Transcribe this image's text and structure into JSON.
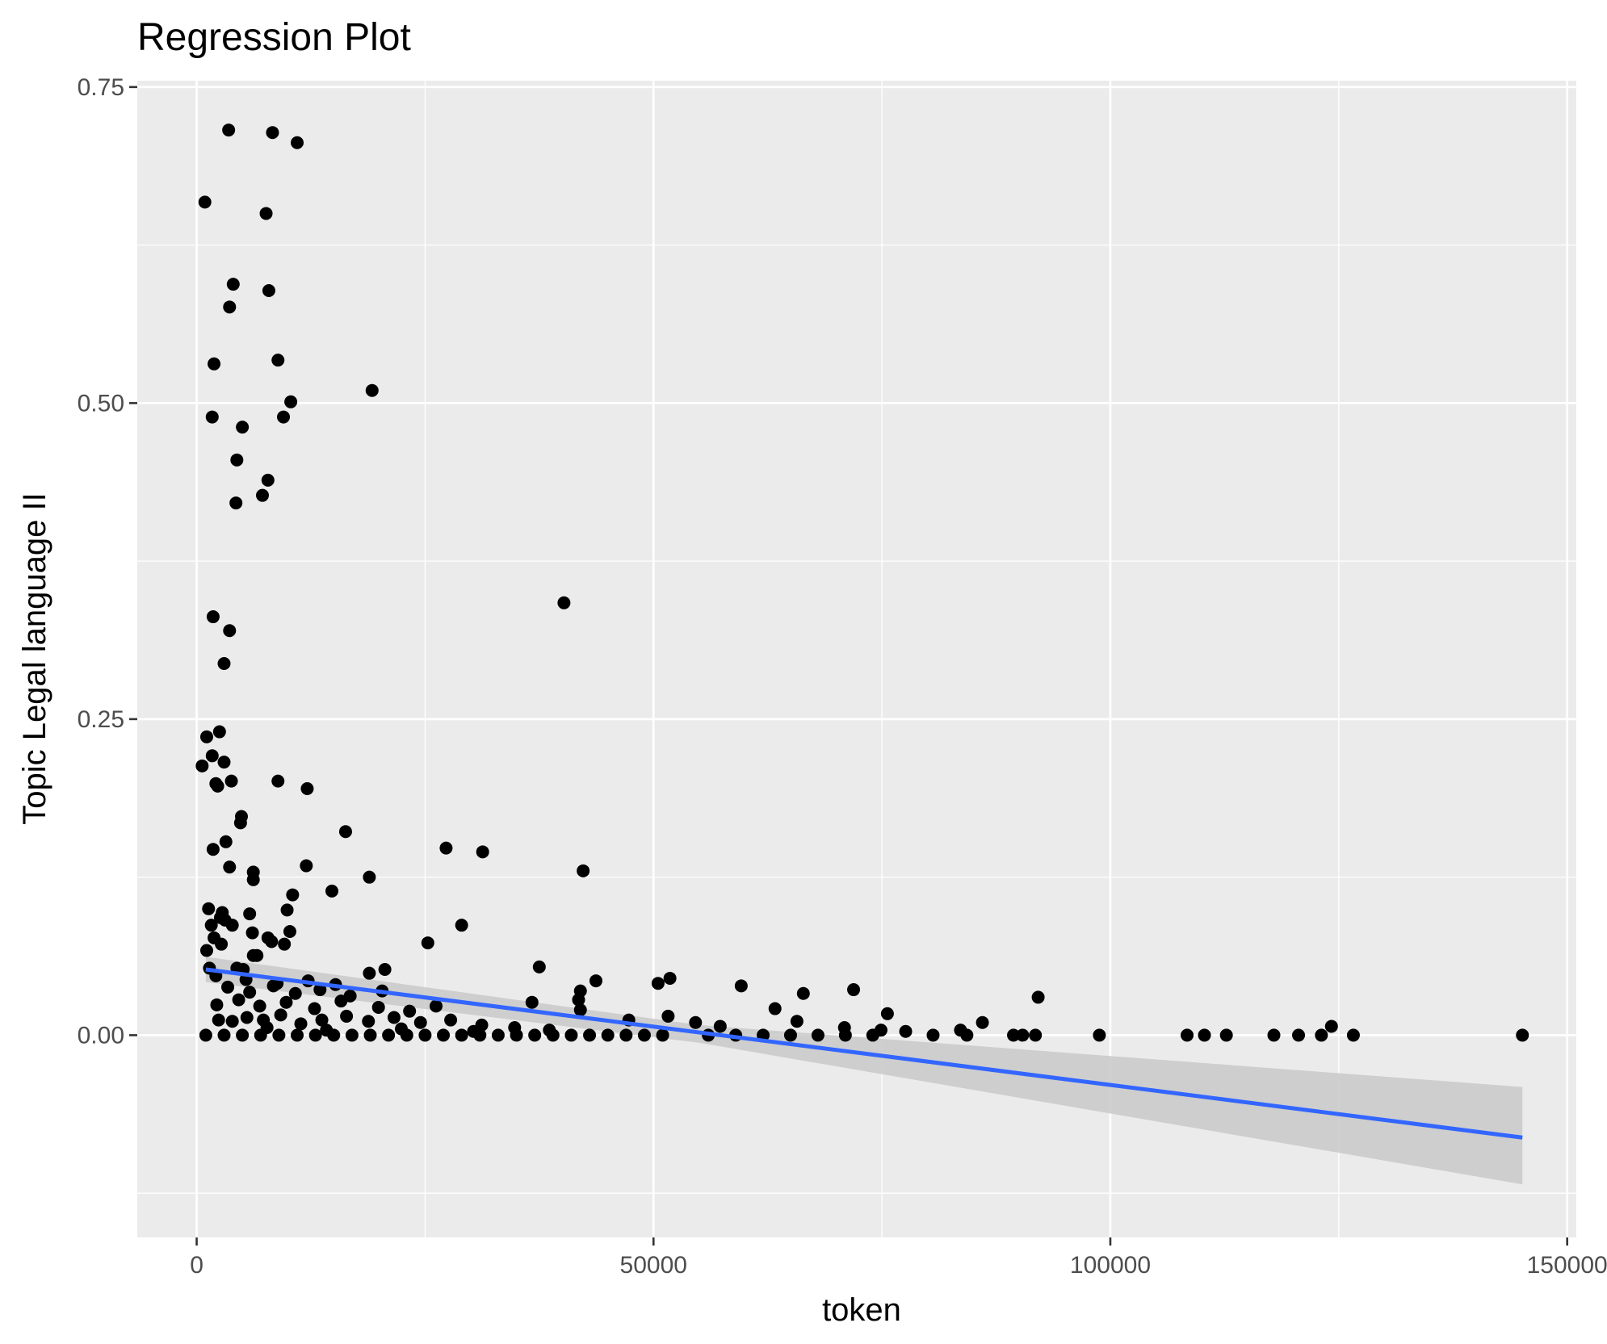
{
  "chart_data": {
    "type": "scatter",
    "title": "Regression Plot",
    "xlabel": "token",
    "ylabel": "Topic Legal language II",
    "xlim": [
      -6500,
      151000
    ],
    "ylim": [
      -0.16,
      0.755
    ],
    "xticks": [
      0,
      50000,
      100000,
      150000
    ],
    "xtick_labels": [
      "0",
      "50000",
      "100000",
      "150000"
    ],
    "yticks": [
      0.0,
      0.25,
      0.5,
      0.75
    ],
    "ytick_labels": [
      "0.00",
      "0.25",
      "0.50",
      "0.75"
    ],
    "grid": true,
    "legend": "none",
    "colors": {
      "panel": "#EBEBEB",
      "grid": "#FFFFFF",
      "points": "#000000",
      "regression_line": "#3366FF",
      "confidence_band": "#C9C9C9",
      "tick_text": "#4D4D4D"
    },
    "points": [
      [
        3500,
        0.716
      ],
      [
        8300,
        0.714
      ],
      [
        11000,
        0.706
      ],
      [
        900,
        0.659
      ],
      [
        7600,
        0.65
      ],
      [
        4000,
        0.594
      ],
      [
        7900,
        0.589
      ],
      [
        3600,
        0.576
      ],
      [
        1900,
        0.531
      ],
      [
        8900,
        0.534
      ],
      [
        19200,
        0.51
      ],
      [
        10300,
        0.501
      ],
      [
        1700,
        0.489
      ],
      [
        9500,
        0.489
      ],
      [
        5000,
        0.481
      ],
      [
        4400,
        0.455
      ],
      [
        7800,
        0.439
      ],
      [
        7200,
        0.427
      ],
      [
        4300,
        0.421
      ],
      [
        40200,
        0.342
      ],
      [
        1800,
        0.331
      ],
      [
        3600,
        0.32
      ],
      [
        3000,
        0.294
      ],
      [
        2500,
        0.24
      ],
      [
        1100,
        0.236
      ],
      [
        1700,
        0.221
      ],
      [
        3000,
        0.216
      ],
      [
        600,
        0.213
      ],
      [
        3800,
        0.201
      ],
      [
        2100,
        0.199
      ],
      [
        2300,
        0.197
      ],
      [
        8900,
        0.201
      ],
      [
        12100,
        0.195
      ],
      [
        4900,
        0.173
      ],
      [
        4800,
        0.168
      ],
      [
        16300,
        0.161
      ],
      [
        3200,
        0.153
      ],
      [
        1800,
        0.147
      ],
      [
        27300,
        0.148
      ],
      [
        31300,
        0.145
      ],
      [
        3600,
        0.133
      ],
      [
        12000,
        0.134
      ],
      [
        6200,
        0.129
      ],
      [
        42300,
        0.13
      ],
      [
        6200,
        0.123
      ],
      [
        18900,
        0.125
      ],
      [
        14800,
        0.114
      ],
      [
        10500,
        0.111
      ],
      [
        1300,
        0.1
      ],
      [
        9900,
        0.099
      ],
      [
        2800,
        0.097
      ],
      [
        2600,
        0.093
      ],
      [
        5800,
        0.096
      ],
      [
        3100,
        0.091
      ],
      [
        1600,
        0.087
      ],
      [
        3900,
        0.087
      ],
      [
        29000,
        0.087
      ],
      [
        10200,
        0.082
      ],
      [
        6100,
        0.081
      ],
      [
        1900,
        0.077
      ],
      [
        7800,
        0.077
      ],
      [
        8200,
        0.074
      ],
      [
        2700,
        0.072
      ],
      [
        9600,
        0.072
      ],
      [
        25300,
        0.073
      ],
      [
        1100,
        0.067
      ],
      [
        6200,
        0.063
      ],
      [
        6600,
        0.063
      ],
      [
        37500,
        0.054
      ],
      [
        18900,
        0.049
      ],
      [
        20600,
        0.052
      ],
      [
        1400,
        0.053
      ],
      [
        4400,
        0.053
      ],
      [
        5100,
        0.052
      ],
      [
        43700,
        0.043
      ],
      [
        51800,
        0.045
      ],
      [
        59600,
        0.039
      ],
      [
        50500,
        0.041
      ],
      [
        66400,
        0.033
      ],
      [
        71900,
        0.036
      ],
      [
        92100,
        0.03
      ],
      [
        42000,
        0.035
      ],
      [
        36700,
        0.026
      ],
      [
        41800,
        0.028
      ],
      [
        63300,
        0.021
      ],
      [
        75600,
        0.017
      ],
      [
        65700,
        0.011
      ],
      [
        86000,
        0.01
      ],
      [
        42000,
        0.02
      ],
      [
        47300,
        0.012
      ],
      [
        51600,
        0.015
      ],
      [
        54600,
        0.01
      ],
      [
        57300,
        0.007
      ],
      [
        70900,
        0.006
      ],
      [
        74900,
        0.004
      ],
      [
        77600,
        0.003
      ],
      [
        83600,
        0.004
      ],
      [
        124200,
        0.007
      ],
      [
        1000,
        0.0
      ],
      [
        3000,
        0.0
      ],
      [
        5000,
        0.0
      ],
      [
        7000,
        0.0
      ],
      [
        9000,
        0.0
      ],
      [
        11000,
        0.0
      ],
      [
        13000,
        0.0
      ],
      [
        15000,
        0.0
      ],
      [
        17000,
        0.0
      ],
      [
        19000,
        0.0
      ],
      [
        21000,
        0.0
      ],
      [
        23000,
        0.0
      ],
      [
        25000,
        0.0
      ],
      [
        27000,
        0.0
      ],
      [
        29000,
        0.0
      ],
      [
        31000,
        0.0
      ],
      [
        33000,
        0.0
      ],
      [
        35000,
        0.0
      ],
      [
        37000,
        0.0
      ],
      [
        39000,
        0.0
      ],
      [
        41000,
        0.0
      ],
      [
        43000,
        0.0
      ],
      [
        45000,
        0.0
      ],
      [
        47000,
        0.0
      ],
      [
        49000,
        0.0
      ],
      [
        51000,
        0.0
      ],
      [
        56000,
        0.0
      ],
      [
        59000,
        0.0
      ],
      [
        62000,
        0.0
      ],
      [
        65000,
        0.0
      ],
      [
        68000,
        0.0
      ],
      [
        71000,
        0.0
      ],
      [
        74000,
        0.0
      ],
      [
        80600,
        0.0
      ],
      [
        84300,
        0.0
      ],
      [
        89400,
        0.0
      ],
      [
        90400,
        0.0
      ],
      [
        91800,
        0.0
      ],
      [
        98800,
        0.0
      ],
      [
        108400,
        0.0
      ],
      [
        110300,
        0.0
      ],
      [
        112700,
        0.0
      ],
      [
        117900,
        0.0
      ],
      [
        120600,
        0.0
      ],
      [
        123100,
        0.0
      ],
      [
        126600,
        0.0
      ],
      [
        145100,
        0.0
      ],
      [
        3900,
        0.011
      ],
      [
        5500,
        0.014
      ],
      [
        7300,
        0.012
      ],
      [
        9200,
        0.016
      ],
      [
        11400,
        0.009
      ],
      [
        13700,
        0.012
      ],
      [
        16400,
        0.015
      ],
      [
        18800,
        0.011
      ],
      [
        21600,
        0.014
      ],
      [
        24500,
        0.01
      ],
      [
        27800,
        0.012
      ],
      [
        31200,
        0.008
      ],
      [
        34800,
        0.006
      ],
      [
        2200,
        0.024
      ],
      [
        4600,
        0.028
      ],
      [
        6900,
        0.023
      ],
      [
        9800,
        0.026
      ],
      [
        12900,
        0.021
      ],
      [
        15800,
        0.027
      ],
      [
        19900,
        0.022
      ],
      [
        23300,
        0.019
      ],
      [
        26200,
        0.023
      ],
      [
        3400,
        0.038
      ],
      [
        5800,
        0.034
      ],
      [
        8400,
        0.039
      ],
      [
        10800,
        0.033
      ],
      [
        13500,
        0.036
      ],
      [
        16800,
        0.031
      ],
      [
        20300,
        0.035
      ],
      [
        2100,
        0.047
      ],
      [
        5400,
        0.044
      ],
      [
        8800,
        0.041
      ],
      [
        12200,
        0.043
      ],
      [
        15200,
        0.04
      ],
      [
        2400,
        0.012
      ],
      [
        7700,
        0.006
      ],
      [
        14200,
        0.004
      ],
      [
        22400,
        0.005
      ],
      [
        30300,
        0.003
      ],
      [
        38600,
        0.004
      ]
    ],
    "regression": {
      "x_start": 1000,
      "x_end": 145100,
      "y_start": 0.052,
      "y_end": -0.081,
      "ci_start": [
        0.042,
        0.062
      ],
      "ci_mid_x": 55000,
      "ci_mid": [
        -0.006,
        0.008
      ],
      "ci_end": [
        -0.118,
        -0.041
      ]
    }
  }
}
